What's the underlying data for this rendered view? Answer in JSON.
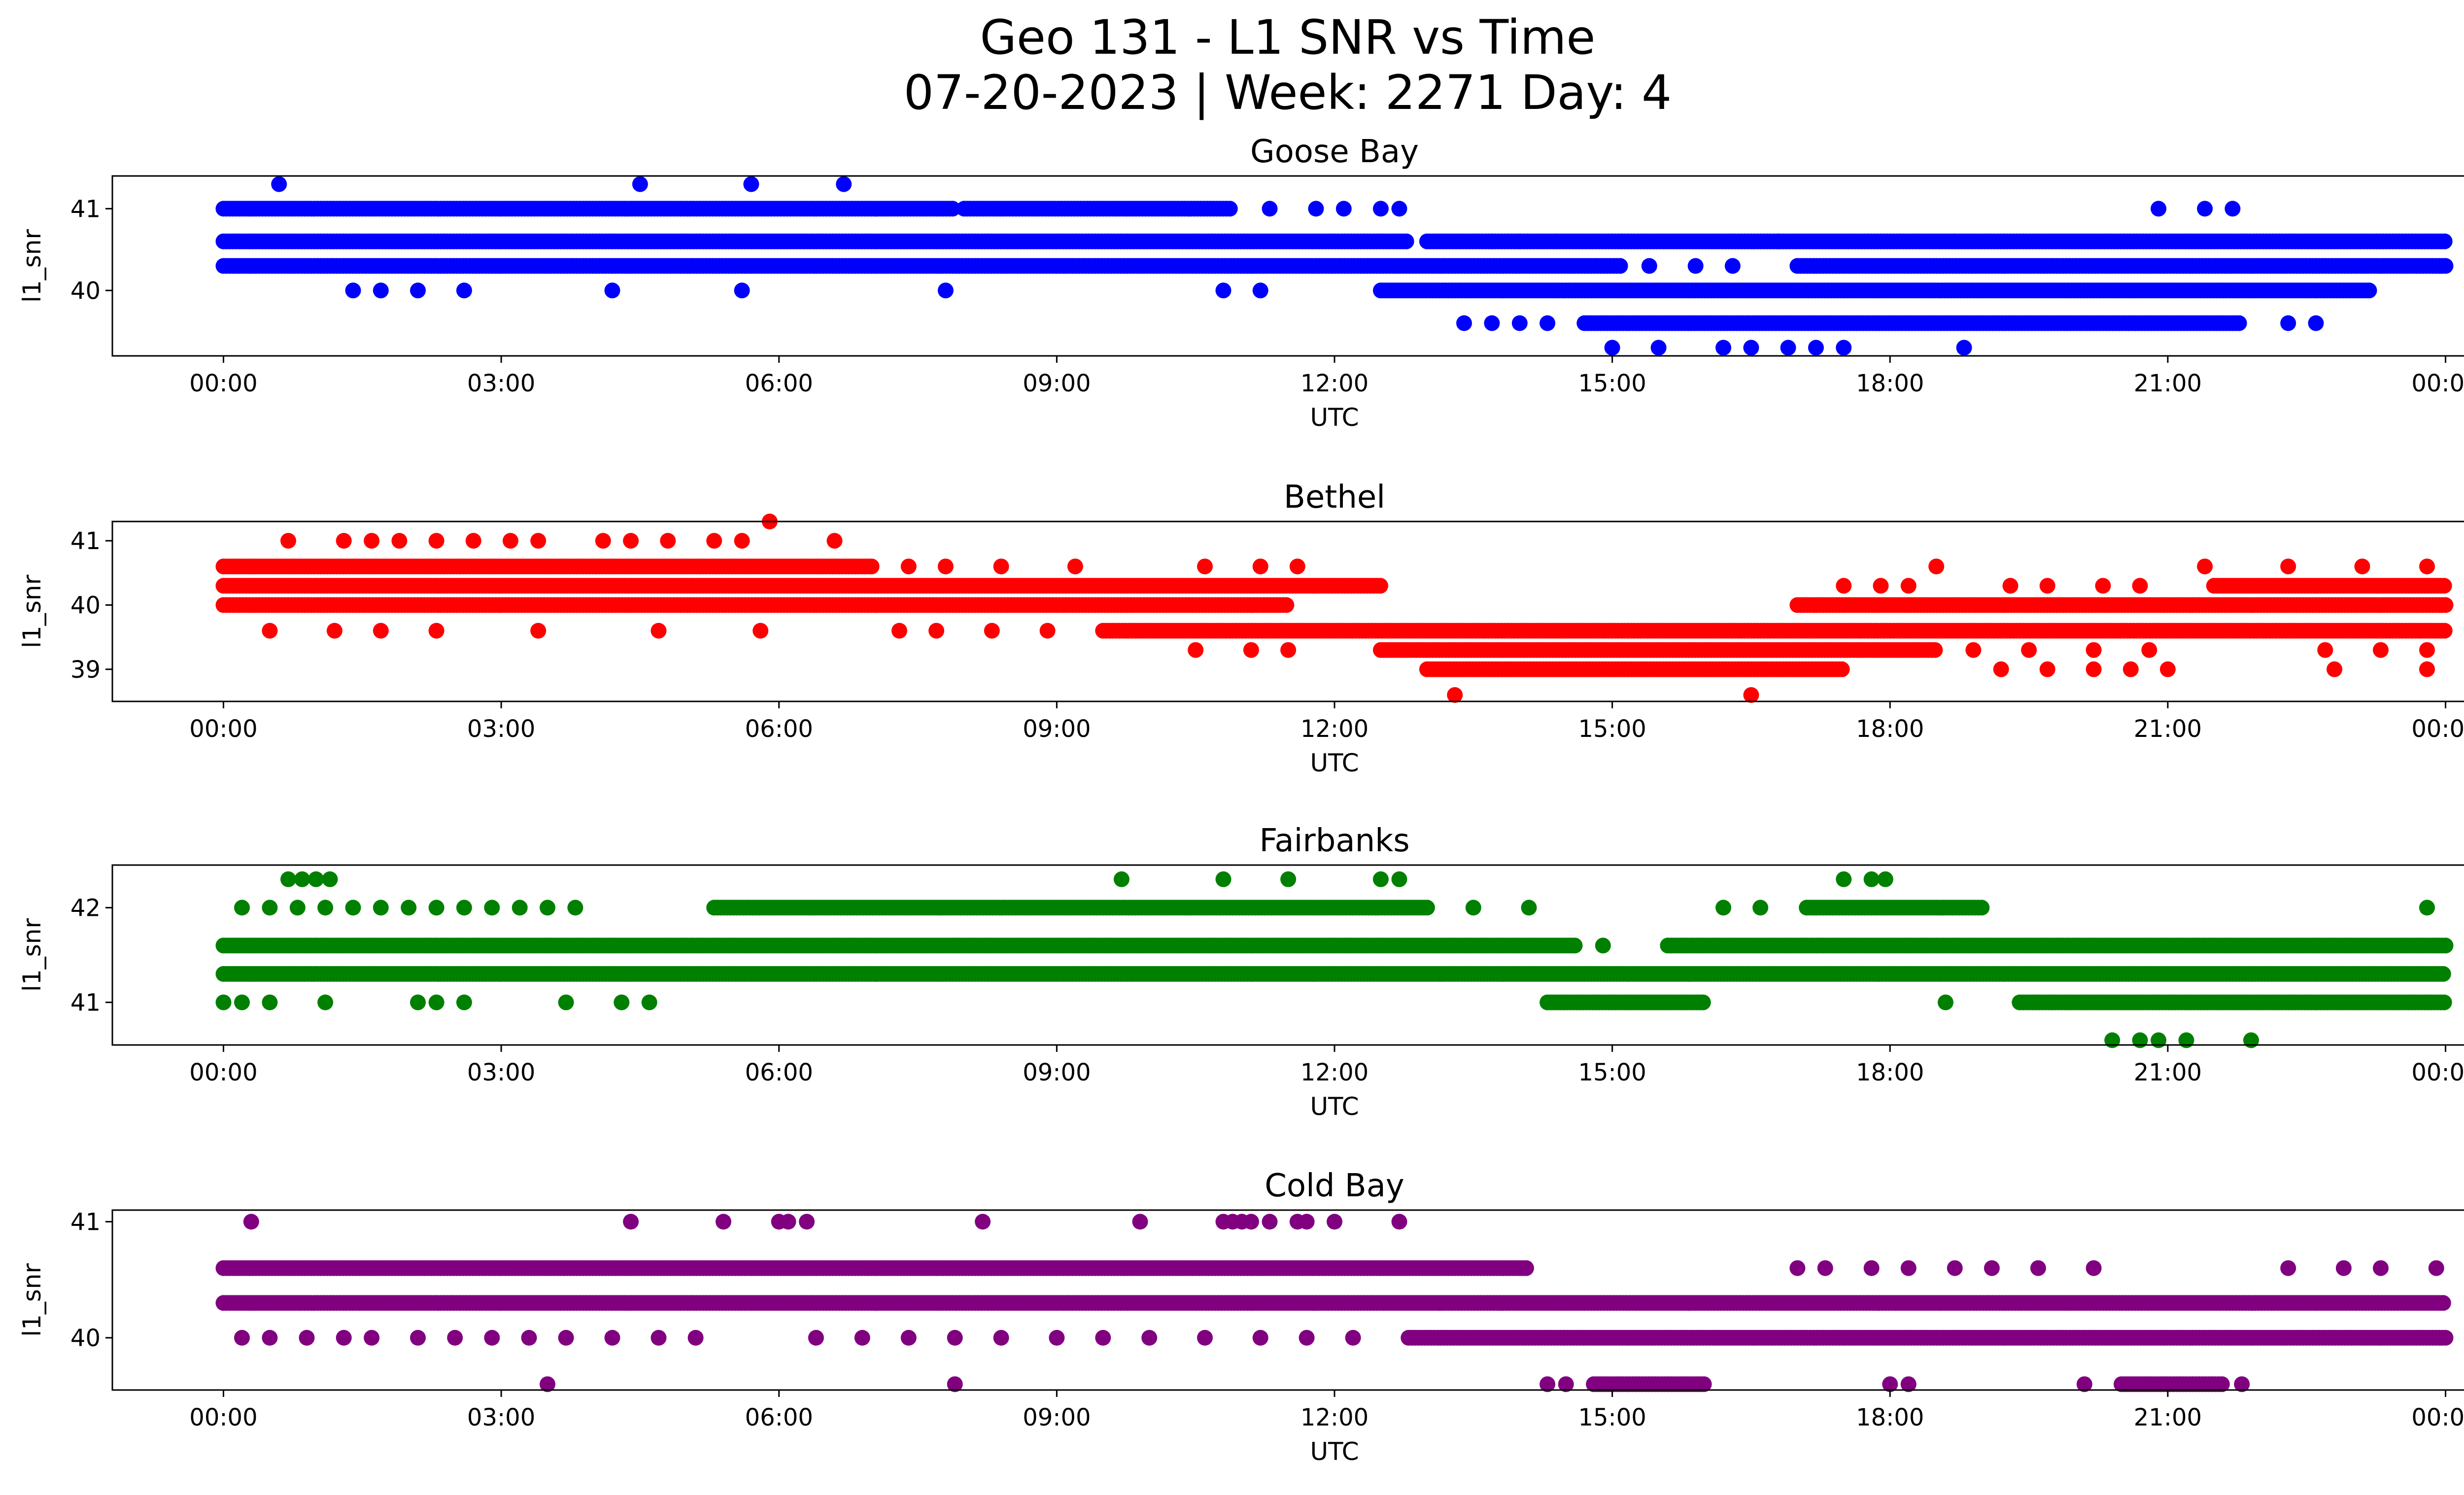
{
  "figure": {
    "title_line1": "Geo 131 - L1 SNR vs Time",
    "title_line2": "07-20-2023 | Week: 2271 Day: 4"
  },
  "chart_data": [
    {
      "type": "scatter",
      "title": "Goose Bay",
      "xlabel": "UTC",
      "ylabel": "l1_snr",
      "color": "#0000ff",
      "x_range_hours": [
        -1.2,
        25.2
      ],
      "ylim": [
        39.2,
        41.4
      ],
      "x_ticks": [
        "00:00",
        "03:00",
        "06:00",
        "09:00",
        "12:00",
        "15:00",
        "18:00",
        "21:00",
        "00:00"
      ],
      "y_ticks": [
        40,
        41
      ],
      "levels": [
        {
          "y": 40.6,
          "bands": [
            [
              0.0,
              12.8
            ],
            [
              13.0,
              24.0
            ]
          ]
        },
        {
          "y": 40.3,
          "bands": [
            [
              0.0,
              15.1
            ],
            [
              17.0,
              24.0
            ]
          ]
        },
        {
          "y": 41.0,
          "bands": [
            [
              0.0,
              7.9
            ],
            [
              8.0,
              10.9
            ]
          ]
        },
        {
          "y": 40.0,
          "bands": [
            [
              12.5,
              23.2
            ]
          ]
        },
        {
          "y": 39.6,
          "bands": [
            [
              14.7,
              21.8
            ]
          ]
        }
      ],
      "sparse_points": [
        {
          "y": 41.3,
          "x": [
            0.6,
            4.5,
            5.7,
            6.7
          ]
        },
        {
          "y": 41.0,
          "x": [
            11.3,
            11.8,
            12.1,
            12.5,
            12.7,
            20.9,
            21.4,
            21.7
          ]
        },
        {
          "y": 40.6,
          "x": [
            13.7,
            14.0,
            14.4,
            15.1,
            16.8,
            18.7
          ]
        },
        {
          "y": 40.3,
          "x": [
            15.4,
            15.9,
            16.3
          ]
        },
        {
          "y": 40.0,
          "x": [
            1.4,
            1.7,
            2.1,
            2.6,
            4.2,
            5.6,
            7.8,
            10.8,
            11.2
          ]
        },
        {
          "y": 39.6,
          "x": [
            13.4,
            13.7,
            14.0,
            14.3,
            22.3,
            22.6
          ]
        },
        {
          "y": 39.3,
          "x": [
            15.0,
            15.5,
            16.2,
            16.5,
            16.9,
            17.2,
            17.5,
            18.8
          ]
        }
      ]
    },
    {
      "type": "scatter",
      "title": "Bethel",
      "xlabel": "UTC",
      "ylabel": "l1_snr",
      "color": "#ff0000",
      "x_range_hours": [
        -1.2,
        25.2
      ],
      "ylim": [
        38.5,
        41.3
      ],
      "x_ticks": [
        "00:00",
        "03:00",
        "06:00",
        "09:00",
        "12:00",
        "15:00",
        "18:00",
        "21:00",
        "00:00"
      ],
      "y_ticks": [
        39,
        40,
        41
      ],
      "levels": [
        {
          "y": 40.3,
          "bands": [
            [
              0.0,
              12.5
            ],
            [
              21.5,
              24.0
            ]
          ]
        },
        {
          "y": 40.0,
          "bands": [
            [
              0.0,
              11.5
            ],
            [
              17.0,
              24.0
            ]
          ]
        },
        {
          "y": 39.6,
          "bands": [
            [
              9.5,
              24.0
            ]
          ]
        },
        {
          "y": 39.3,
          "bands": [
            [
              12.5,
              18.5
            ]
          ]
        },
        {
          "y": 39.0,
          "bands": [
            [
              13.0,
              17.5
            ]
          ]
        },
        {
          "y": 40.6,
          "bands": [
            [
              0.0,
              7.0
            ]
          ]
        }
      ],
      "sparse_points": [
        {
          "y": 41.3,
          "x": [
            5.9
          ]
        },
        {
          "y": 41.0,
          "x": [
            0.7,
            1.3,
            1.6,
            1.9,
            2.3,
            2.7,
            3.1,
            3.4,
            4.1,
            4.4,
            4.8,
            5.3,
            5.6,
            6.6
          ]
        },
        {
          "y": 40.6,
          "x": [
            7.4,
            7.8,
            8.4,
            9.2,
            10.6,
            11.2,
            11.6,
            18.5,
            21.4,
            22.3,
            23.1,
            23.8
          ]
        },
        {
          "y": 40.3,
          "x": [
            17.5,
            17.9,
            18.2,
            19.3,
            19.7,
            20.3,
            20.7
          ]
        },
        {
          "y": 39.6,
          "x": [
            0.5,
            1.2,
            1.7,
            2.3,
            3.4,
            4.7,
            5.8,
            7.3,
            7.7,
            8.3,
            8.9
          ]
        },
        {
          "y": 39.3,
          "x": [
            10.5,
            11.1,
            11.5,
            18.9,
            19.5,
            20.2,
            20.8,
            22.7,
            23.3,
            23.8
          ]
        },
        {
          "y": 39.0,
          "x": [
            19.2,
            19.7,
            20.2,
            20.6,
            21.0,
            22.8,
            23.8
          ]
        },
        {
          "y": 38.6,
          "x": [
            13.3,
            16.5
          ]
        }
      ]
    },
    {
      "type": "scatter",
      "title": "Fairbanks",
      "xlabel": "UTC",
      "ylabel": "l1_snr",
      "color": "#008000",
      "x_range_hours": [
        -1.2,
        25.2
      ],
      "ylim": [
        40.55,
        42.45
      ],
      "x_ticks": [
        "00:00",
        "03:00",
        "06:00",
        "09:00",
        "12:00",
        "15:00",
        "18:00",
        "21:00",
        "00:00"
      ],
      "y_ticks": [
        41,
        42
      ],
      "levels": [
        {
          "y": 41.6,
          "bands": [
            [
              0.0,
              14.6
            ],
            [
              15.6,
              24.0
            ]
          ]
        },
        {
          "y": 41.3,
          "bands": [
            [
              0.0,
              24.0
            ]
          ]
        },
        {
          "y": 42.0,
          "bands": [
            [
              5.3,
              13.0
            ],
            [
              17.1,
              19.0
            ]
          ]
        },
        {
          "y": 41.0,
          "bands": [
            [
              14.3,
              16.0
            ],
            [
              19.4,
              24.0
            ]
          ]
        }
      ],
      "sparse_points": [
        {
          "y": 42.3,
          "x": [
            0.7,
            0.85,
            1.0,
            1.15,
            9.7,
            10.8,
            11.5,
            12.5,
            12.7,
            17.5,
            17.8,
            17.95
          ]
        },
        {
          "y": 42.0,
          "x": [
            0.2,
            0.5,
            0.8,
            1.1,
            1.4,
            1.7,
            2.0,
            2.3,
            2.6,
            2.9,
            3.2,
            3.5,
            3.8,
            13.5,
            14.1,
            16.2,
            16.6,
            23.8
          ]
        },
        {
          "y": 41.6,
          "x": [
            14.9
          ]
        },
        {
          "y": 41.0,
          "x": [
            0.0,
            0.2,
            0.5,
            1.1,
            2.1,
            2.3,
            2.6,
            3.7,
            4.3,
            4.6,
            18.6
          ]
        },
        {
          "y": 40.6,
          "x": [
            20.4,
            20.7,
            20.9,
            21.2,
            21.9
          ]
        }
      ]
    },
    {
      "type": "scatter",
      "title": "Cold Bay",
      "xlabel": "UTC",
      "ylabel": "l1_snr",
      "color": "#800080",
      "x_range_hours": [
        -1.2,
        25.2
      ],
      "ylim": [
        39.55,
        41.1
      ],
      "x_ticks": [
        "00:00",
        "03:00",
        "06:00",
        "09:00",
        "12:00",
        "15:00",
        "18:00",
        "21:00",
        "00:00"
      ],
      "y_ticks": [
        40,
        41
      ],
      "levels": [
        {
          "y": 40.6,
          "bands": [
            [
              0.0,
              14.1
            ]
          ]
        },
        {
          "y": 40.3,
          "bands": [
            [
              0.0,
              24.0
            ]
          ]
        },
        {
          "y": 40.0,
          "bands": [
            [
              12.8,
              24.0
            ]
          ]
        },
        {
          "y": 39.6,
          "bands": [
            [
              14.8,
              16.0
            ],
            [
              20.5,
              21.6
            ]
          ]
        }
      ],
      "sparse_points": [
        {
          "y": 41.0,
          "x": [
            0.3,
            4.4,
            5.4,
            6.0,
            6.1,
            6.3,
            8.2,
            9.9,
            10.8,
            10.9,
            11.0,
            11.1,
            11.3,
            11.6,
            11.7,
            12.0,
            12.7
          ]
        },
        {
          "y": 40.6,
          "x": [
            17.0,
            17.3,
            17.8,
            18.2,
            18.7,
            19.1,
            19.6,
            20.2,
            22.3,
            22.9,
            23.3,
            23.9
          ]
        },
        {
          "y": 40.0,
          "x": [
            0.2,
            0.5,
            0.9,
            1.3,
            1.6,
            2.1,
            2.5,
            2.9,
            3.3,
            3.7,
            4.2,
            4.7,
            5.1,
            6.4,
            6.9,
            7.4,
            7.9,
            8.4,
            9.0,
            9.5,
            10.0,
            10.6,
            11.2,
            11.7,
            12.2
          ]
        },
        {
          "y": 39.6,
          "x": [
            3.5,
            7.9,
            14.3,
            14.5,
            18.0,
            18.2,
            20.1,
            21.8
          ]
        }
      ]
    }
  ]
}
